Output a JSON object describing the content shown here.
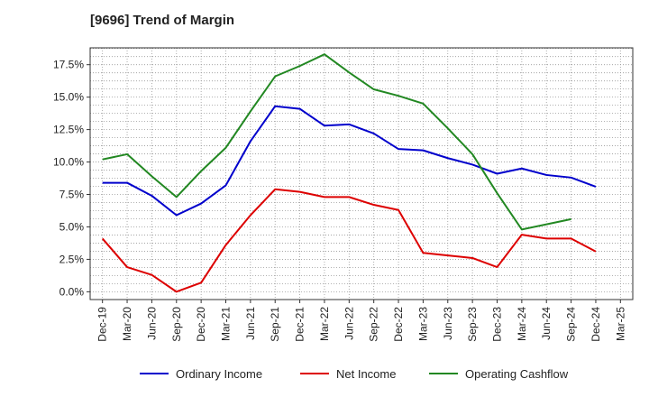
{
  "chart_data": {
    "type": "line",
    "title": "[9696]  Trend of Margin",
    "xlabel": "",
    "ylabel": "",
    "x": [
      "Dec-19",
      "Mar-20",
      "Jun-20",
      "Sep-20",
      "Dec-20",
      "Mar-21",
      "Jun-21",
      "Sep-21",
      "Dec-21",
      "Mar-22",
      "Jun-22",
      "Sep-22",
      "Dec-22",
      "Mar-23",
      "Jun-23",
      "Sep-23",
      "Dec-23",
      "Mar-24",
      "Jun-24",
      "Sep-24",
      "Dec-24",
      "Mar-25"
    ],
    "ylim": [
      -0.6,
      18.8
    ],
    "yticks": [
      0.0,
      2.5,
      5.0,
      7.5,
      10.0,
      12.5,
      15.0,
      17.5
    ],
    "ytick_labels": [
      "0.0%",
      "2.5%",
      "5.0%",
      "7.5%",
      "10.0%",
      "12.5%",
      "15.0%",
      "17.5%"
    ],
    "grid": true,
    "legend_position": "bottom",
    "series": [
      {
        "name": "Ordinary Income",
        "color": "#0000cc",
        "values": [
          8.4,
          8.4,
          7.4,
          5.9,
          6.8,
          8.2,
          11.6,
          14.3,
          14.1,
          12.8,
          12.9,
          12.2,
          11.0,
          10.9,
          10.3,
          9.8,
          9.1,
          9.5,
          9.0,
          8.8,
          8.1,
          null
        ]
      },
      {
        "name": "Net Income",
        "color": "#dd0000",
        "values": [
          4.1,
          1.9,
          1.3,
          0.0,
          0.7,
          3.6,
          5.9,
          7.9,
          7.7,
          7.3,
          7.3,
          6.7,
          6.3,
          3.0,
          2.8,
          2.6,
          1.9,
          4.4,
          4.1,
          4.1,
          3.1,
          null
        ]
      },
      {
        "name": "Operating Cashflow",
        "color": "#228822",
        "values": [
          10.2,
          10.6,
          8.9,
          7.3,
          9.3,
          11.1,
          13.9,
          16.6,
          17.4,
          18.3,
          16.9,
          15.6,
          15.1,
          14.5,
          12.6,
          10.6,
          7.6,
          4.8,
          5.2,
          5.6,
          null,
          null
        ]
      }
    ]
  }
}
